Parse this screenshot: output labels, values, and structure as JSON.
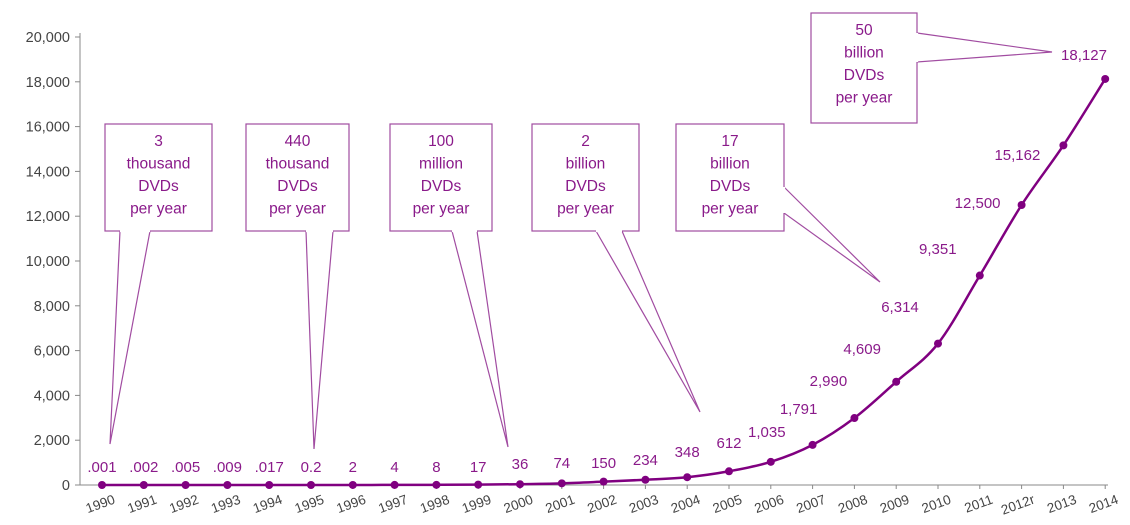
{
  "chart_data": {
    "type": "line",
    "categories": [
      "1990",
      "1991",
      "1992",
      "1993",
      "1994",
      "1995",
      "1996",
      "1997",
      "1998",
      "1999",
      "2000",
      "2001",
      "2002",
      "2003",
      "2004",
      "2005",
      "2006",
      "2007",
      "2008",
      "2009",
      "2010",
      "2011",
      "2012r",
      "2013",
      "2014"
    ],
    "values": [
      0.001,
      0.002,
      0.005,
      0.009,
      0.017,
      0.2,
      2,
      4,
      8,
      17,
      36,
      74,
      150,
      234,
      348,
      612,
      1035,
      1791,
      2990,
      4609,
      6314,
      9351,
      12500,
      15162,
      18127
    ],
    "value_labels": [
      ".001",
      ".002",
      ".005",
      ".009",
      ".017",
      "0.2",
      "2",
      "4",
      "8",
      "17",
      "36",
      "74",
      "150",
      "234",
      "348",
      "612",
      "1,035",
      "1,791",
      "2,990",
      "4,609",
      "6,314",
      "9,351",
      "12,500",
      "15,162",
      "18,127"
    ],
    "ylim": [
      0,
      20000
    ],
    "yticks": [
      0,
      2000,
      4000,
      6000,
      8000,
      10000,
      12000,
      14000,
      16000,
      18000,
      20000
    ],
    "ytick_labels": [
      "0",
      "2,000",
      "4,000",
      "6,000",
      "8,000",
      "10,000",
      "12,000",
      "14,000",
      "16,000",
      "18,000",
      "20,000"
    ],
    "grid": false,
    "title": "",
    "xlabel": "",
    "ylabel": "",
    "series_color": "#800080",
    "annotations": [
      {
        "lines": [
          "3",
          "thousand",
          "DVDs",
          "per year"
        ],
        "points_to": "1990"
      },
      {
        "lines": [
          "440",
          "thousand",
          "DVDs",
          "per year"
        ],
        "points_to": "1995"
      },
      {
        "lines": [
          "100",
          "million",
          "DVDs",
          "per year"
        ],
        "points_to": "2000"
      },
      {
        "lines": [
          "2",
          "billion",
          "DVDs",
          "per year"
        ],
        "points_to": "2004"
      },
      {
        "lines": [
          "17",
          "billion",
          "DVDs",
          "per year"
        ],
        "points_to": "2010"
      },
      {
        "lines": [
          "50",
          "billion",
          "DVDs",
          "per year"
        ],
        "points_to": "2014"
      }
    ]
  }
}
